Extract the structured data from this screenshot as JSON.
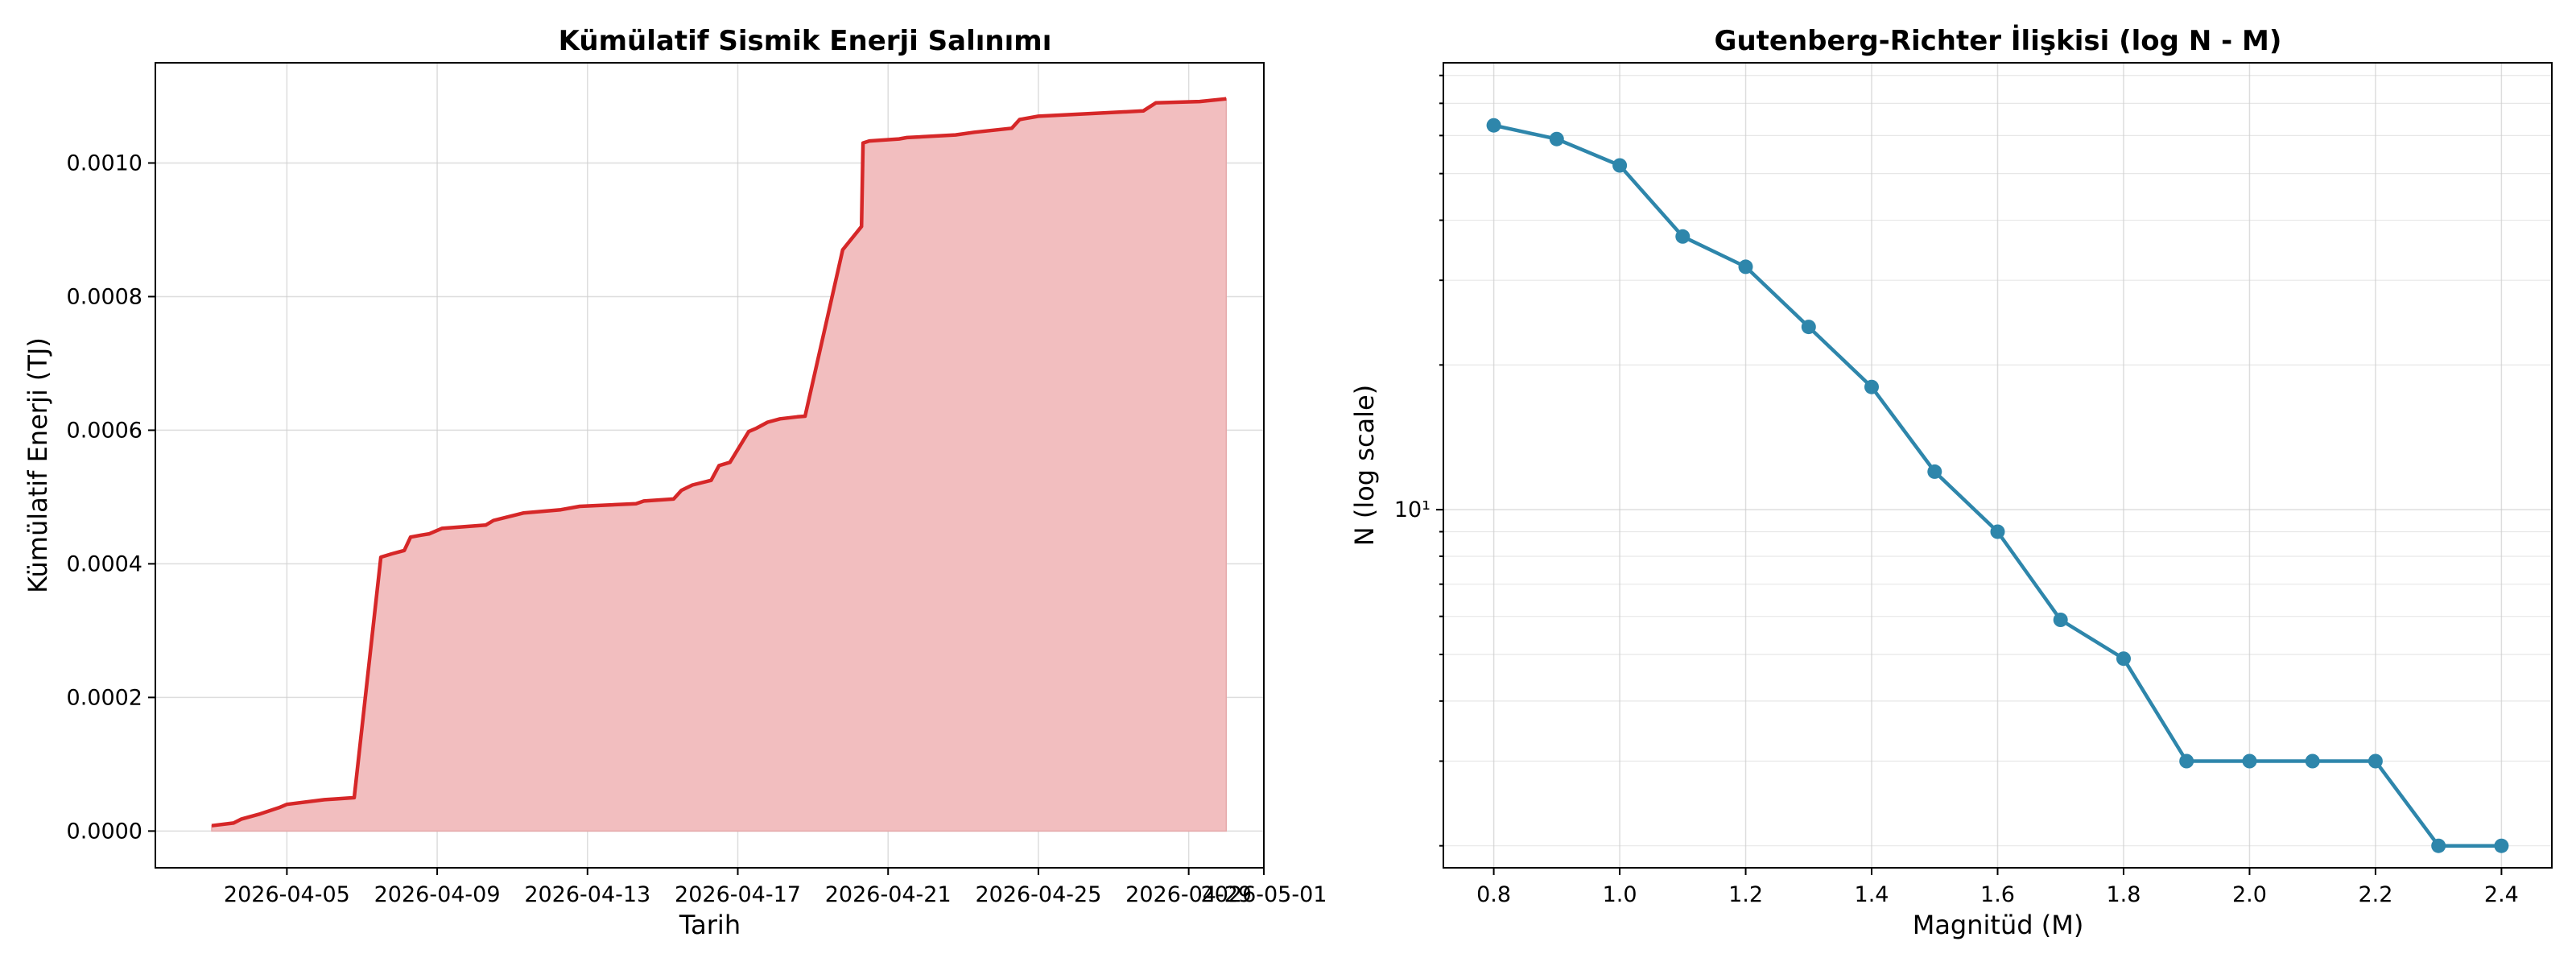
{
  "chart_data": [
    {
      "type": "area",
      "title": "Kümülatif Sismik Enerji Salınımı",
      "xlabel": "Tarih",
      "ylabel": "Kümülatif Enerji (TJ)",
      "x_ticks": [
        "2026-04-05",
        "2026-04-09",
        "2026-04-13",
        "2026-04-17",
        "2026-04-21",
        "2026-04-25",
        "2026-04-29",
        "2026-05-01"
      ],
      "y_ticks": [
        "0.0000",
        "0.0002",
        "0.0004",
        "0.0006",
        "0.0008",
        "0.0010"
      ],
      "xlim": [
        "2026-04-01 12:00",
        "2026-05-01 00:00"
      ],
      "ylim": [
        -5.5e-05,
        0.00115
      ],
      "grid": true,
      "line_color": "#d62728",
      "fill_color": "#f2bebf",
      "series": [
        {
          "x": [
            "2026-04-03 00:00",
            "2026-04-03 14:00",
            "2026-04-03 19:00",
            "2026-04-04 06:00",
            "2026-04-04 19:00",
            "2026-04-05 00:00",
            "2026-04-06 00:00",
            "2026-04-06 07:00",
            "2026-04-06 19:00",
            "2026-04-07 12:00",
            "2026-04-07 19:00",
            "2026-04-08 03:00",
            "2026-04-08 07:00",
            "2026-04-08 14:00",
            "2026-04-08 19:00",
            "2026-04-09 03:00",
            "2026-04-10 07:00",
            "2026-04-10 12:00",
            "2026-04-11 07:00",
            "2026-04-12 07:00",
            "2026-04-12 19:00",
            "2026-04-14 07:00",
            "2026-04-14 12:00",
            "2026-04-15 07:00",
            "2026-04-15 12:00",
            "2026-04-15 19:00",
            "2026-04-16 07:00",
            "2026-04-16 12:00",
            "2026-04-16 19:00",
            "2026-04-17 07:00",
            "2026-04-17 12:00",
            "2026-04-17 19:00",
            "2026-04-18 03:00",
            "2026-04-18 14:00",
            "2026-04-18 19:00",
            "2026-04-19 19:00",
            "2026-04-20 07:00",
            "2026-04-20 08:00",
            "2026-04-20 12:00",
            "2026-04-21 07:00",
            "2026-04-21 12:00",
            "2026-04-22 19:00",
            "2026-04-23 07:00",
            "2026-04-24 07:00",
            "2026-04-24 12:00",
            "2026-04-25 00:00",
            "2026-04-27 19:00",
            "2026-04-28 03:00",
            "2026-04-29 07:00",
            "2026-04-30 00:00"
          ],
          "y": [
            8e-06,
            1.2e-05,
            1.8e-05,
            2.5e-05,
            3.5e-05,
            4e-05,
            4.7e-05,
            4.8e-05,
            5e-05,
            0.00041,
            0.000415,
            0.00042,
            0.00044,
            0.000443,
            0.000445,
            0.000453,
            0.000458,
            0.000465,
            0.000476,
            0.000481,
            0.000486,
            0.00049,
            0.000494,
            0.000497,
            0.00051,
            0.000518,
            0.000525,
            0.000547,
            0.000552,
            0.000598,
            0.000603,
            0.000612,
            0.000617,
            0.00062,
            0.000621,
            0.00087,
            0.000905,
            0.00103,
            0.001033,
            0.001036,
            0.001038,
            0.001042,
            0.001046,
            0.001052,
            0.001065,
            0.00107,
            0.001078,
            0.00109,
            0.001092,
            0.001096
          ]
        }
      ]
    },
    {
      "type": "line",
      "title": "Gutenberg-Richter İlişkisi (log N - M)",
      "xlabel": "Magnitüd (M)",
      "ylabel": "N (log scale)",
      "y_scale": "log",
      "x_ticks": [
        "0.8",
        "1.0",
        "1.2",
        "1.4",
        "1.6",
        "1.8",
        "2.0",
        "2.2",
        "2.4"
      ],
      "y_major_tick": "10¹",
      "xlim": [
        0.72,
        2.48
      ],
      "ylim": [
        1.8,
        85
      ],
      "grid": true,
      "line_color": "#2e86ab",
      "series": [
        {
          "x": [
            0.8,
            0.9,
            1.0,
            1.1,
            1.2,
            1.3,
            1.4,
            1.5,
            1.6,
            1.7,
            1.8,
            1.9,
            2.0,
            2.1,
            2.2,
            2.3,
            2.4
          ],
          "y": [
            63,
            59,
            52,
            37,
            32,
            24,
            18,
            12,
            9,
            5.9,
            4.9,
            3,
            3,
            3,
            3,
            2,
            2
          ]
        }
      ]
    }
  ]
}
